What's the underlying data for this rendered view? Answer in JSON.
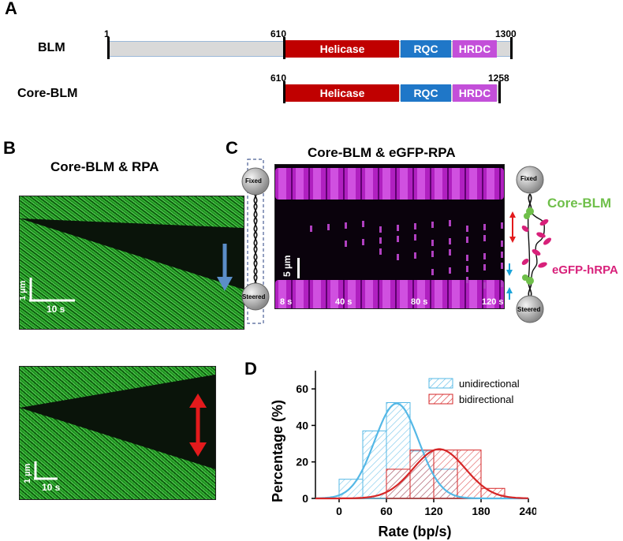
{
  "panelA": {
    "letter": "A",
    "constructs": [
      {
        "name": "BLM",
        "start": "1",
        "mid": "610",
        "end": "1300"
      },
      {
        "name": "Core-BLM",
        "start": "610",
        "end": "1258"
      }
    ],
    "domains": [
      "Helicase",
      "RQC",
      "HRDC"
    ],
    "colors": {
      "helicase": "#c00000",
      "rqc": "#1f77c8",
      "hrdc": "#c34fd9",
      "backbone": "#d9d9d9"
    }
  },
  "panelB": {
    "letter": "B",
    "title": "Core-BLM & RPA",
    "top": {
      "scale_y": "1 µm",
      "scale_x": "10 s"
    },
    "bottom": {
      "scale_y": "1 µm",
      "scale_x": "10 s"
    },
    "colors": {
      "green": "#2fb32f",
      "arrow_down": "#5b8ec8",
      "arrow_bi": "#e31a1c"
    }
  },
  "panelC": {
    "letter": "C",
    "title": "Core-BLM & eGFP-RPA",
    "bead_fixed": "Fixed",
    "bead_steered": "Steered",
    "scale": "5 µm",
    "times": [
      "8 s",
      "40 s",
      "80 s",
      "120 s"
    ],
    "label_blm": "Core-BLM",
    "label_rpa": "eGFP-hRPA",
    "colors": {
      "magenta": "#c02ad0",
      "blm": "#6fbf4a",
      "rpa": "#d8207a"
    }
  },
  "panelD": {
    "letter": "D",
    "chart_data": {
      "type": "bar",
      "xlabel": "Rate (bp/s)",
      "ylabel": "Percentage (%)",
      "xticks": [
        "0",
        "60",
        "120",
        "180",
        "240"
      ],
      "yticks": [
        "0",
        "20",
        "40",
        "60"
      ],
      "xlim": [
        -30,
        240
      ],
      "ylim": [
        0,
        70
      ],
      "bin_width": 30,
      "series": [
        {
          "name": "unidirectional",
          "color": "#55b8e6",
          "bin_starts": [
            0,
            30,
            60,
            90,
            120
          ],
          "values": [
            10.5,
            37,
            52.5,
            26,
            16
          ],
          "fit": {
            "mean": 73,
            "sd": 28,
            "peak": 52
          }
        },
        {
          "name": "bidirectional",
          "color": "#d62728",
          "bin_starts": [
            60,
            90,
            120,
            150,
            180
          ],
          "values": [
            16,
            26.5,
            26.5,
            26.5,
            5.5
          ],
          "fit": {
            "mean": 127,
            "sd": 33,
            "peak": 27
          }
        }
      ]
    }
  }
}
